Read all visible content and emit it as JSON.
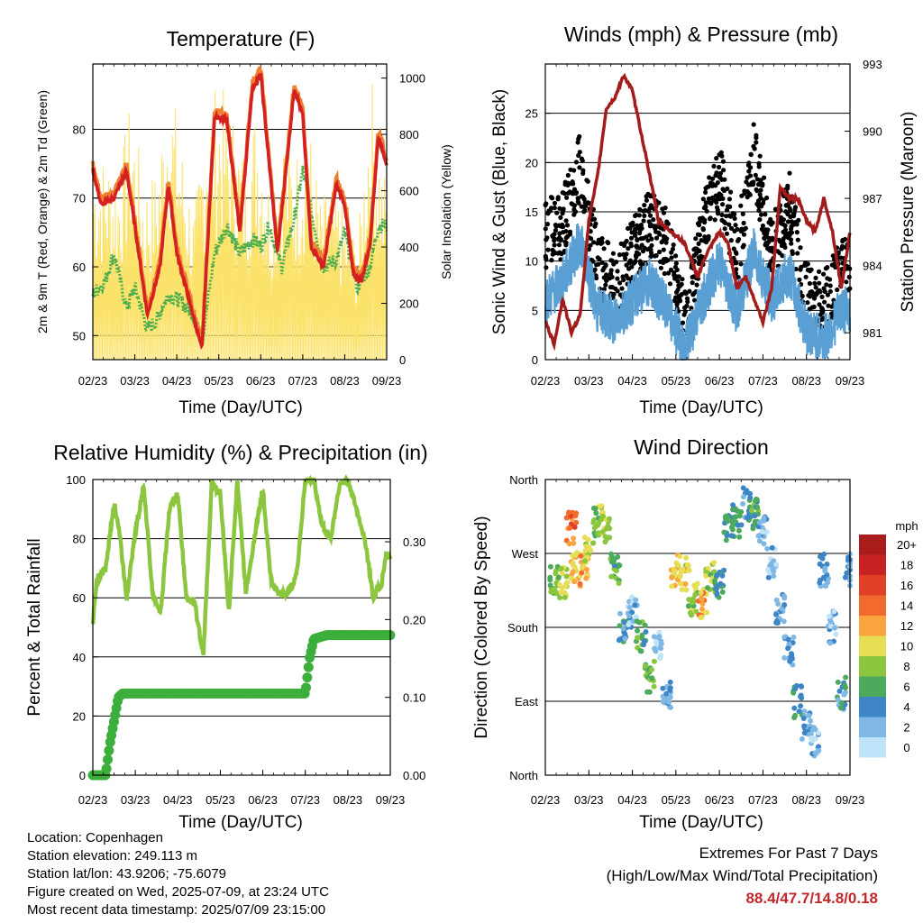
{
  "chart_data": [
    {
      "type": "line",
      "title": "Temperature (F)",
      "xlabel": "Time (Day/UTC)",
      "ylabel": "2m & 9m T (Red, Orange) & 2m Td (Green)",
      "ylabel_right": "Solar Insolation (Yellow)",
      "x_ticks": [
        "02/23",
        "03/23",
        "04/23",
        "05/23",
        "06/23",
        "07/23",
        "08/23",
        "09/23"
      ],
      "ylim": [
        46.5,
        89.5
      ],
      "y_ticks": [
        50,
        60,
        70,
        80
      ],
      "y2lim": [
        0,
        1050
      ],
      "y2_ticks": [
        0,
        200,
        400,
        600,
        800,
        1000
      ],
      "grid": true,
      "colors": {
        "t2m": "#d42020",
        "t9m": "#f08030",
        "td": "#4cae4c",
        "solar": "#fbe26a"
      },
      "series": [
        {
          "name": "2m T",
          "axis": "left",
          "x": [
            0,
            0.2,
            0.5,
            0.8,
            1,
            1.3,
            1.6,
            1.8,
            2.0,
            2.3,
            2.6,
            2.9,
            3.2,
            3.5,
            3.8,
            4.0,
            4.2,
            4.4,
            4.6,
            4.8,
            5.0,
            5.2,
            5.5,
            5.8,
            6.0,
            6.2,
            6.4,
            6.6,
            6.8,
            7.0
          ],
          "y": [
            74,
            69,
            70,
            74,
            66,
            53,
            60,
            72,
            62,
            55,
            48,
            82,
            81,
            65,
            86,
            88,
            75,
            62,
            74,
            86,
            82,
            63,
            60,
            72,
            69,
            59,
            58,
            63,
            79,
            75
          ]
        },
        {
          "name": "Td",
          "axis": "left",
          "x": [
            0,
            0.3,
            0.5,
            0.8,
            1.0,
            1.3,
            1.5,
            1.8,
            2.1,
            2.4,
            2.6,
            2.9,
            3.2,
            3.5,
            3.8,
            4.0,
            4.2,
            4.5,
            4.8,
            5.0,
            5.2,
            5.5,
            5.8,
            6.0,
            6.3,
            6.6,
            6.8,
            7.0
          ],
          "y": [
            56,
            58,
            62,
            54,
            57,
            51,
            52,
            56,
            55,
            53,
            49,
            62,
            66,
            62,
            64,
            63,
            66,
            60,
            67,
            74,
            68,
            60,
            61,
            65,
            57,
            60,
            66,
            66
          ]
        },
        {
          "name": "Solar",
          "axis": "right",
          "x": [
            0.3,
            0.6,
            0.9,
            1.2,
            1.5,
            1.8,
            2.1,
            2.4,
            2.7,
            3.0,
            3.3,
            3.6,
            3.9,
            4.2,
            4.5,
            4.8,
            5.1,
            5.4,
            5.7,
            6.0,
            6.3,
            6.6,
            6.9
          ],
          "y": [
            700,
            650,
            900,
            600,
            650,
            1000,
            750,
            500,
            900,
            950,
            850,
            700,
            900,
            600,
            800,
            700,
            850,
            550,
            600,
            500,
            400,
            1000,
            650
          ]
        }
      ]
    },
    {
      "type": "scatter",
      "title": "Winds (mph) & Pressure (mb)",
      "xlabel": "Time (Day/UTC)",
      "ylabel": "Sonic Wind & Gust (Blue, Black)",
      "ylabel_right": "Station Pressure (Maroon)",
      "x_ticks": [
        "02/23",
        "03/23",
        "04/23",
        "05/23",
        "06/23",
        "07/23",
        "08/23",
        "09/23"
      ],
      "ylim": [
        0,
        30
      ],
      "y_ticks": [
        0,
        5,
        10,
        15,
        20,
        25
      ],
      "y2lim": [
        979.8,
        993
      ],
      "y2_ticks": [
        981,
        984,
        987,
        990,
        993
      ],
      "grid": true,
      "colors": {
        "gust": "#000000",
        "wind": "#5a9fd4",
        "pressure": "#a31c1c"
      },
      "series": [
        {
          "name": "Gust",
          "axis": "left",
          "x": [
            0,
            0.4,
            0.8,
            1.2,
            1.6,
            2.0,
            2.4,
            2.8,
            3.2,
            3.6,
            4.0,
            4.4,
            4.8,
            5.2,
            5.6,
            6.0,
            6.4,
            6.8,
            7.0
          ],
          "y": [
            12,
            13,
            19,
            9,
            7,
            10,
            13,
            11,
            3,
            12,
            18,
            10,
            20,
            10,
            15,
            6,
            5,
            8,
            9
          ]
        },
        {
          "name": "Wind",
          "axis": "left",
          "x": [
            0,
            0.4,
            0.8,
            1.2,
            1.6,
            2.0,
            2.4,
            2.8,
            3.2,
            3.6,
            4.0,
            4.4,
            4.8,
            5.2,
            5.6,
            6.0,
            6.4,
            6.8,
            7.0
          ],
          "y": [
            6,
            8,
            12,
            5,
            4,
            6,
            8,
            5,
            1,
            6,
            10,
            5,
            11,
            6,
            9,
            3,
            2,
            5,
            5
          ]
        },
        {
          "name": "Pressure",
          "axis": "right",
          "x": [
            0,
            0.2,
            0.4,
            0.6,
            0.8,
            1.0,
            1.2,
            1.4,
            1.6,
            1.8,
            2.0,
            2.3,
            2.6,
            2.9,
            3.2,
            3.5,
            3.7,
            4.0,
            4.2,
            4.4,
            4.6,
            4.8,
            5.0,
            5.2,
            5.4,
            5.6,
            5.8,
            6.0,
            6.2,
            6.4,
            6.6,
            6.8,
            7.0
          ],
          "y": [
            981.5,
            980.5,
            982.5,
            981,
            981.8,
            986,
            988,
            991,
            991.5,
            992.5,
            991.8,
            989,
            986,
            985.5,
            985,
            983.5,
            984.5,
            985.5,
            985,
            983,
            983.5,
            982.5,
            981.5,
            983,
            987.5,
            987,
            987,
            986,
            985.5,
            987,
            985.5,
            983,
            985.5
          ]
        }
      ]
    },
    {
      "type": "line",
      "title": "Relative Humidity (%) & Precipitation (in)",
      "xlabel": "Time (Day/UTC)",
      "ylabel": "Percent & Total Rainfall",
      "x_ticks": [
        "02/23",
        "03/23",
        "04/23",
        "05/23",
        "06/23",
        "07/23",
        "08/23",
        "09/23"
      ],
      "ylim": [
        0,
        100
      ],
      "y_ticks": [
        0,
        20,
        40,
        60,
        80,
        100
      ],
      "y2lim": [
        0,
        0.38
      ],
      "y2_ticks": [
        "0.00",
        "0.10",
        "0.20",
        "0.30"
      ],
      "grid": true,
      "colors": {
        "rh": "#8cc63f",
        "precip": "#3cae3c"
      },
      "series": [
        {
          "name": "RH",
          "axis": "left",
          "x": [
            0,
            0.1,
            0.3,
            0.5,
            0.6,
            0.8,
            1.0,
            1.2,
            1.4,
            1.6,
            1.8,
            2.0,
            2.2,
            2.4,
            2.6,
            2.8,
            3.0,
            3.2,
            3.4,
            3.6,
            3.8,
            4.0,
            4.2,
            4.4,
            4.6,
            4.8,
            5.0,
            5.2,
            5.4,
            5.6,
            5.8,
            6.0,
            6.2,
            6.4,
            6.6,
            6.8,
            6.9,
            7.0
          ],
          "y": [
            52,
            66,
            70,
            92,
            85,
            60,
            82,
            98,
            62,
            55,
            90,
            95,
            60,
            58,
            40,
            99,
            95,
            55,
            100,
            62,
            80,
            97,
            65,
            61,
            62,
            68,
            100,
            100,
            84,
            80,
            98,
            100,
            90,
            80,
            60,
            65,
            75,
            74
          ]
        },
        {
          "name": "Precip",
          "axis": "right",
          "x": [
            0,
            0.3,
            0.4,
            0.5,
            0.6,
            0.7,
            1.0,
            1.5,
            2.0,
            2.5,
            3.0,
            3.5,
            4.0,
            4.5,
            5.0,
            5.1,
            5.2,
            5.5,
            6.0,
            6.5,
            7.0
          ],
          "y": [
            0,
            0,
            0.04,
            0.07,
            0.1,
            0.105,
            0.105,
            0.105,
            0.105,
            0.105,
            0.105,
            0.105,
            0.105,
            0.105,
            0.105,
            0.15,
            0.175,
            0.18,
            0.18,
            0.18,
            0.18
          ]
        }
      ]
    },
    {
      "type": "scatter",
      "title": "Wind Direction",
      "xlabel": "Time (Day/UTC)",
      "ylabel": "Direction (Colored By Speed)",
      "x_ticks": [
        "02/23",
        "03/23",
        "04/23",
        "05/23",
        "06/23",
        "07/23",
        "08/23",
        "09/23"
      ],
      "ylim": [
        0,
        360
      ],
      "y_ticks": [
        "North",
        "East",
        "South",
        "West",
        "North"
      ],
      "grid": true,
      "colorbar": {
        "title": "mph",
        "labels": [
          "20+",
          "18",
          "16",
          "14",
          "12",
          "10",
          "8",
          "6",
          "4",
          "2",
          "0"
        ],
        "colors": [
          "#a81c1c",
          "#c82222",
          "#e04026",
          "#f26a2e",
          "#f9a440",
          "#e7de55",
          "#8cc63f",
          "#4caa5c",
          "#3d85c6",
          "#7fb8e4",
          "#bfe3f8"
        ]
      },
      "points": [
        {
          "x": 0.2,
          "y": 240,
          "s": 7
        },
        {
          "x": 0.4,
          "y": 235,
          "s": 9
        },
        {
          "x": 0.6,
          "y": 300,
          "s": 14
        },
        {
          "x": 0.7,
          "y": 255,
          "s": 11
        },
        {
          "x": 0.9,
          "y": 250,
          "s": 12
        },
        {
          "x": 1.0,
          "y": 270,
          "s": 9
        },
        {
          "x": 1.2,
          "y": 310,
          "s": 8
        },
        {
          "x": 1.4,
          "y": 300,
          "s": 9
        },
        {
          "x": 1.6,
          "y": 250,
          "s": 6
        },
        {
          "x": 1.8,
          "y": 180,
          "s": 4
        },
        {
          "x": 2.0,
          "y": 200,
          "s": 2
        },
        {
          "x": 2.2,
          "y": 170,
          "s": 6
        },
        {
          "x": 2.4,
          "y": 120,
          "s": 7
        },
        {
          "x": 2.6,
          "y": 160,
          "s": 1
        },
        {
          "x": 2.8,
          "y": 100,
          "s": 3
        },
        {
          "x": 3.0,
          "y": 250,
          "s": 11
        },
        {
          "x": 3.2,
          "y": 245,
          "s": 10
        },
        {
          "x": 3.4,
          "y": 215,
          "s": 8
        },
        {
          "x": 3.6,
          "y": 210,
          "s": 12
        },
        {
          "x": 3.8,
          "y": 240,
          "s": 8
        },
        {
          "x": 4.0,
          "y": 230,
          "s": 5
        },
        {
          "x": 4.2,
          "y": 300,
          "s": 5
        },
        {
          "x": 4.4,
          "y": 310,
          "s": 5
        },
        {
          "x": 4.6,
          "y": 330,
          "s": 4
        },
        {
          "x": 4.8,
          "y": 320,
          "s": 6
        },
        {
          "x": 5.0,
          "y": 300,
          "s": 2
        },
        {
          "x": 5.2,
          "y": 260,
          "s": 2
        },
        {
          "x": 5.4,
          "y": 200,
          "s": 3
        },
        {
          "x": 5.6,
          "y": 150,
          "s": 3
        },
        {
          "x": 5.8,
          "y": 90,
          "s": 4
        },
        {
          "x": 6.0,
          "y": 60,
          "s": 3
        },
        {
          "x": 6.2,
          "y": 40,
          "s": 2
        },
        {
          "x": 6.4,
          "y": 250,
          "s": 3
        },
        {
          "x": 6.6,
          "y": 180,
          "s": 2
        },
        {
          "x": 6.8,
          "y": 100,
          "s": 4
        },
        {
          "x": 7.0,
          "y": 250,
          "s": 3
        }
      ]
    }
  ],
  "footer": {
    "location": "Location: Copenhagen",
    "elevation": "Station elevation: 249.113 m",
    "latlon": "Station lat/lon: 43.9206; -75.6079",
    "created": "Figure created on Wed, 2025-07-09, at 23:24 UTC",
    "recent": "Most recent data timestamp: 2025/07/09 23:15:00"
  },
  "extremes": {
    "title": "Extremes For Past 7 Days",
    "subtitle": "(High/Low/Max Wind/Total Precipitation)",
    "values": "88.4/47.7/14.8/0.18"
  }
}
